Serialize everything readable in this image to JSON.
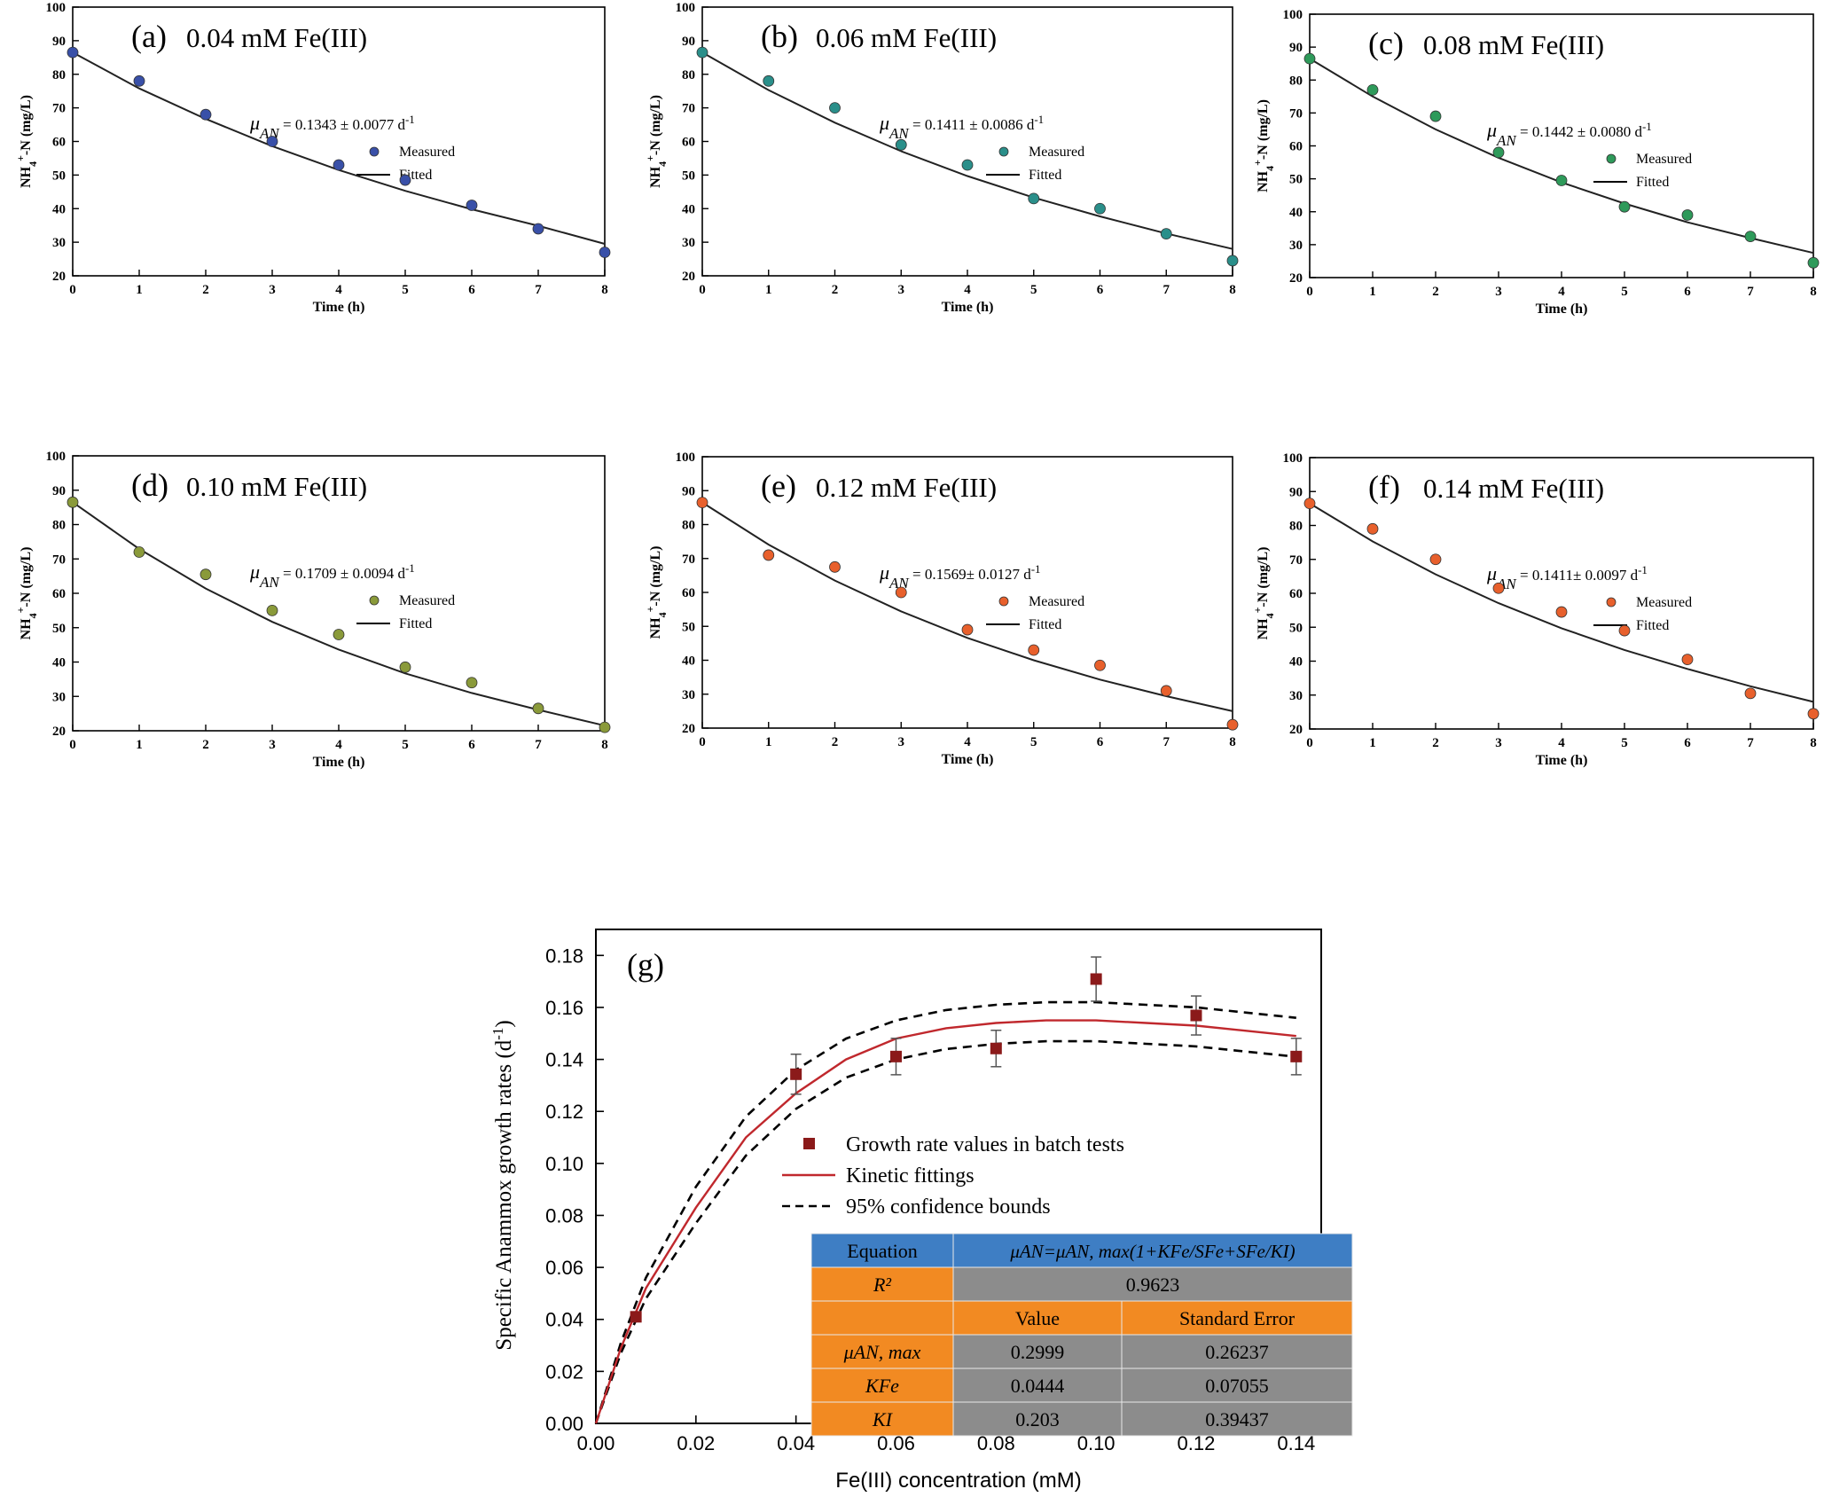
{
  "chart_data": [
    {
      "type": "scatter",
      "panel_label": "(a)",
      "condition": "0.04 mM Fe(III)",
      "annotation": {
        "prefix": "μ",
        "sub": "AN",
        "text": " = 0.1343 ±  0.0077 d",
        "sup": "-1"
      },
      "xlabel": "Time (h)",
      "ylabel": {
        "base": "NH",
        "sub": "4",
        "sup": "+",
        "rest": "-N (mg/L)"
      },
      "xlim": [
        0,
        8
      ],
      "ylim": [
        20,
        100
      ],
      "xticks": [
        "0",
        "1",
        "2",
        "3",
        "4",
        "5",
        "6",
        "7",
        "8"
      ],
      "yticks": [
        "20",
        "30",
        "40",
        "50",
        "60",
        "70",
        "80",
        "90",
        "100"
      ],
      "legend": {
        "measured": "Measured",
        "fitted": "Fitted"
      },
      "marker_color": "#3950a8",
      "series": [
        {
          "name": "Measured",
          "x": [
            0,
            1,
            2,
            3,
            4,
            5,
            6,
            7,
            8
          ],
          "y": [
            86.5,
            78,
            68,
            60,
            53,
            48.5,
            41,
            34,
            27
          ]
        },
        {
          "name": "Fitted",
          "x": [
            0,
            1,
            2,
            3,
            4,
            5,
            6,
            7,
            8
          ],
          "y": [
            86.5,
            75.8,
            66.7,
            58.6,
            51.5,
            45.3,
            39.8,
            34.9,
            29.5
          ]
        }
      ]
    },
    {
      "type": "scatter",
      "panel_label": "(b)",
      "condition": "0.06 mM Fe(III)",
      "annotation": {
        "prefix": "μ",
        "sub": "AN",
        "text": " = 0.1411 ±  0.0086 d",
        "sup": "-1"
      },
      "xlabel": "Time (h)",
      "ylabel": {
        "base": "NH",
        "sub": "4",
        "sup": "+",
        "rest": "-N (mg/L)"
      },
      "xlim": [
        0,
        8
      ],
      "ylim": [
        20,
        100
      ],
      "xticks": [
        "0",
        "1",
        "2",
        "3",
        "4",
        "5",
        "6",
        "7",
        "8"
      ],
      "yticks": [
        "20",
        "30",
        "40",
        "50",
        "60",
        "70",
        "80",
        "90",
        "100"
      ],
      "legend": {
        "measured": "Measured",
        "fitted": "Fitted"
      },
      "marker_color": "#2a8f8a",
      "series": [
        {
          "name": "Measured",
          "x": [
            0,
            1,
            2,
            3,
            4,
            5,
            6,
            7,
            8
          ],
          "y": [
            86.5,
            78,
            70,
            59,
            53,
            43,
            40,
            32.5,
            24.5
          ]
        },
        {
          "name": "Fitted",
          "x": [
            0,
            1,
            2,
            3,
            4,
            5,
            6,
            7,
            8
          ],
          "y": [
            86.5,
            75.3,
            65.6,
            57.1,
            49.7,
            43.3,
            37.7,
            32.6,
            28
          ]
        }
      ]
    },
    {
      "type": "scatter",
      "panel_label": "(c)",
      "condition": "0.08 mM Fe(III)",
      "annotation": {
        "prefix": "μ",
        "sub": "AN",
        "text": " = 0.1442 ±  0.0080 d",
        "sup": "-1"
      },
      "xlabel": "Time (h)",
      "ylabel": {
        "base": "NH",
        "sub": "4",
        "sup": "+",
        "rest": "-N (mg/L)"
      },
      "xlim": [
        0,
        8
      ],
      "ylim": [
        20,
        100
      ],
      "xticks": [
        "0",
        "1",
        "2",
        "3",
        "4",
        "5",
        "6",
        "7",
        "8"
      ],
      "yticks": [
        "20",
        "30",
        "40",
        "50",
        "60",
        "70",
        "80",
        "90",
        "100"
      ],
      "legend": {
        "measured": "Measured",
        "fitted": "Fitted"
      },
      "marker_color": "#2e9a5a",
      "series": [
        {
          "name": "Measured",
          "x": [
            0,
            1,
            2,
            3,
            4,
            5,
            6,
            7,
            8
          ],
          "y": [
            86.5,
            77,
            69,
            58,
            49.5,
            41.5,
            39,
            32.5,
            24.5
          ]
        },
        {
          "name": "Fitted",
          "x": [
            0,
            1,
            2,
            3,
            4,
            5,
            6,
            7,
            8
          ],
          "y": [
            86.5,
            75,
            65,
            56.4,
            48.9,
            42.5,
            36.8,
            32,
            27.5
          ]
        }
      ]
    },
    {
      "type": "scatter",
      "panel_label": "(d)",
      "condition": "0.10 mM Fe(III)",
      "annotation": {
        "prefix": "μ",
        "sub": "AN",
        "text": " = 0.1709 ±  0.0094 d",
        "sup": "-1"
      },
      "xlabel": "Time (h)",
      "ylabel": {
        "base": "NH",
        "sub": "4",
        "sup": "+",
        "rest": "-N (mg/L)"
      },
      "xlim": [
        0,
        8
      ],
      "ylim": [
        20,
        100
      ],
      "xticks": [
        "0",
        "1",
        "2",
        "3",
        "4",
        "5",
        "6",
        "7",
        "8"
      ],
      "yticks": [
        "20",
        "30",
        "40",
        "50",
        "60",
        "70",
        "80",
        "90",
        "100"
      ],
      "legend": {
        "measured": "Measured",
        "fitted": "Fitted"
      },
      "marker_color": "#8a9a3a",
      "series": [
        {
          "name": "Measured",
          "x": [
            0,
            1,
            2,
            3,
            4,
            5,
            6,
            7,
            8
          ],
          "y": [
            86.5,
            72,
            65.5,
            55,
            48,
            38.5,
            34,
            26.5,
            21
          ]
        },
        {
          "name": "Fitted",
          "x": [
            0,
            1,
            2,
            3,
            4,
            5,
            6,
            7,
            8
          ],
          "y": [
            86.5,
            72.9,
            61.4,
            51.7,
            43.6,
            36.7,
            31,
            26.1,
            21.5
          ]
        }
      ]
    },
    {
      "type": "scatter",
      "panel_label": "(e)",
      "condition": "0.12 mM Fe(III)",
      "annotation": {
        "prefix": "μ",
        "sub": "AN",
        "text": " = 0.1569±  0.0127 d",
        "sup": "-1"
      },
      "xlabel": "Time (h)",
      "ylabel": {
        "base": "NH",
        "sub": "4",
        "sup": "+",
        "rest": "-N (mg/L)"
      },
      "xlim": [
        0,
        8
      ],
      "ylim": [
        20,
        100
      ],
      "xticks": [
        "0",
        "1",
        "2",
        "3",
        "4",
        "5",
        "6",
        "7",
        "8"
      ],
      "yticks": [
        "20",
        "30",
        "40",
        "50",
        "60",
        "70",
        "80",
        "90",
        "100"
      ],
      "legend": {
        "measured": "Measured",
        "fitted": "Fitted"
      },
      "marker_color": "#e8602c",
      "series": [
        {
          "name": "Measured",
          "x": [
            0,
            1,
            2,
            3,
            4,
            5,
            6,
            7,
            8
          ],
          "y": [
            86.5,
            71,
            67.5,
            60,
            49,
            43,
            38.5,
            31,
            21
          ]
        },
        {
          "name": "Fitted",
          "x": [
            0,
            1,
            2,
            3,
            4,
            5,
            6,
            7,
            8
          ],
          "y": [
            86.5,
            74.1,
            63.5,
            54.4,
            46.6,
            40,
            34.3,
            29.4,
            25
          ]
        }
      ]
    },
    {
      "type": "scatter",
      "panel_label": "(f)",
      "condition": "0.14 mM Fe(III)",
      "annotation": {
        "prefix": "μ",
        "sub": "AN",
        "text": " = 0.1411±  0.0097 d",
        "sup": "-1"
      },
      "xlabel": "Time (h)",
      "ylabel": {
        "base": "NH",
        "sub": "4",
        "sup": "+",
        "rest": "-N (mg/L)"
      },
      "xlim": [
        0,
        8
      ],
      "ylim": [
        20,
        100
      ],
      "xticks": [
        "0",
        "1",
        "2",
        "3",
        "4",
        "5",
        "6",
        "7",
        "8"
      ],
      "yticks": [
        "20",
        "30",
        "40",
        "50",
        "60",
        "70",
        "80",
        "90",
        "100"
      ],
      "legend": {
        "measured": "Measured",
        "fitted": "Fitted"
      },
      "marker_color": "#e8602c",
      "series": [
        {
          "name": "Measured",
          "x": [
            0,
            1,
            2,
            3,
            4,
            5,
            6,
            7,
            8
          ],
          "y": [
            86.5,
            79,
            70,
            61.5,
            54.5,
            49,
            40.5,
            30.5,
            24.5
          ]
        },
        {
          "name": "Fitted",
          "x": [
            0,
            1,
            2,
            3,
            4,
            5,
            6,
            7,
            8
          ],
          "y": [
            86.5,
            75.3,
            65.6,
            57.1,
            49.7,
            43.3,
            37.7,
            32.6,
            28
          ]
        }
      ]
    },
    {
      "type": "scatter",
      "panel_label": "(g)",
      "xlabel": "Fe(III) concentration (mM)",
      "ylabel": "Specific Anammox growth rates (d",
      "ylabel_sup": "-1",
      "ylabel_end": ")",
      "xlim": [
        0,
        0.145
      ],
      "ylim": [
        0,
        0.19
      ],
      "xticks": [
        "0.00",
        "0.02",
        "0.04",
        "0.06",
        "0.08",
        "0.10",
        "0.12",
        "0.14"
      ],
      "yticks": [
        "0.00",
        "0.02",
        "0.04",
        "0.06",
        "0.08",
        "0.10",
        "0.12",
        "0.14",
        "0.16",
        "0.18"
      ],
      "legend": [
        {
          "label": "Growth rate values in batch tests",
          "kind": "marker",
          "color": "#8b1a1a"
        },
        {
          "label": "Kinetic fittings",
          "kind": "line",
          "color": "#c0282d"
        },
        {
          "label": "95% confidence bounds",
          "kind": "dashed",
          "color": "#000000"
        }
      ],
      "series": [
        {
          "name": "Growth rate values in batch tests",
          "x": [
            0,
            0.008,
            0.04,
            0.06,
            0.08,
            0.1,
            0.12,
            0.14
          ],
          "y": [
            0,
            0.041,
            0.1343,
            0.1411,
            0.1442,
            0.1709,
            0.1569,
            0.1411
          ],
          "err": [
            0,
            0,
            0.0077,
            0.007,
            0.007,
            0.0085,
            0.0075,
            0.007
          ]
        },
        {
          "name": "Kinetic fittings",
          "x": [
            0,
            0.005,
            0.01,
            0.02,
            0.03,
            0.04,
            0.05,
            0.06,
            0.07,
            0.08,
            0.09,
            0.1,
            0.11,
            0.12,
            0.13,
            0.14
          ],
          "y": [
            0,
            0.029,
            0.052,
            0.083,
            0.11,
            0.127,
            0.14,
            0.148,
            0.152,
            0.154,
            0.155,
            0.155,
            0.154,
            0.153,
            0.151,
            0.149
          ]
        },
        {
          "name": "95% confidence bounds (upper)",
          "x": [
            0,
            0.005,
            0.01,
            0.02,
            0.03,
            0.04,
            0.05,
            0.06,
            0.07,
            0.08,
            0.09,
            0.1,
            0.11,
            0.12,
            0.13,
            0.14
          ],
          "y": [
            0,
            0.031,
            0.056,
            0.091,
            0.118,
            0.136,
            0.148,
            0.155,
            0.159,
            0.161,
            0.162,
            0.162,
            0.161,
            0.16,
            0.158,
            0.156
          ]
        },
        {
          "name": "95% confidence bounds (lower)",
          "x": [
            0,
            0.005,
            0.01,
            0.02,
            0.03,
            0.04,
            0.05,
            0.06,
            0.07,
            0.08,
            0.09,
            0.1,
            0.11,
            0.12,
            0.13,
            0.14
          ],
          "y": [
            0,
            0.027,
            0.048,
            0.077,
            0.103,
            0.121,
            0.133,
            0.14,
            0.144,
            0.146,
            0.147,
            0.147,
            0.146,
            0.145,
            0.143,
            0.141
          ]
        }
      ],
      "table": {
        "header_label": "Equation",
        "equation": "μAN=μAN, max(1+KFe/SFe+SFe/KI)",
        "r2_label": "R²",
        "r2_value": "0.9623",
        "col_value": "Value",
        "col_error": "Standard Error",
        "rows": [
          {
            "param": "μAN, max",
            "value": "0.2999",
            "error": "0.26237"
          },
          {
            "param": "KFe",
            "value": "0.0444",
            "error": "0.07055"
          },
          {
            "param": "KI",
            "value": "0.203",
            "error": "0.39437"
          }
        ],
        "colors": {
          "blue": "#3e7ec4",
          "orange": "#f28a22",
          "grey": "#8c8c8c"
        }
      }
    }
  ]
}
